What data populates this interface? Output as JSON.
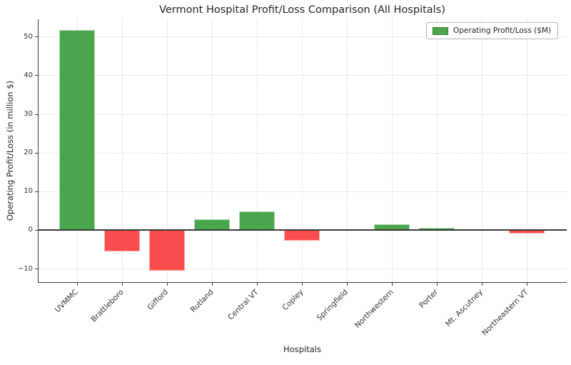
{
  "title": "Vermont Hospital Profit/Loss Comparison (All Hospitals)",
  "axes": {
    "xlabel": "Hospitals",
    "ylabel": "Operating Profit/Loss (in million $)"
  },
  "legend": {
    "label": "Operating Profit/Loss ($M)"
  },
  "colors": {
    "positive_bar": "#4aa54d",
    "negative_bar": "#fa4d4d",
    "legend_swatch": "#4aa54d",
    "zero_line": "#3a3a3a",
    "spine": "#3a3a3a",
    "grid": "#d6d6d6",
    "text": "#262626"
  },
  "chart_data": {
    "type": "bar",
    "title": "Vermont Hospital Profit/Loss Comparison (All Hospitals)",
    "xlabel": "Hospitals",
    "ylabel": "Operating Profit/Loss (in million $)",
    "categories": [
      "UVMMC",
      "Brattleboro",
      "Gifford",
      "Rutland",
      "Central VT",
      "Copley",
      "Springfield",
      "Northwestern",
      "Porter",
      "Mt. Ascutney",
      "Northeastern VT"
    ],
    "values": [
      51.7,
      -5.5,
      -10.5,
      2.7,
      4.8,
      -2.7,
      0.0,
      1.4,
      0.6,
      0.2,
      -1.0
    ],
    "ylim": [
      -13.5,
      54.5
    ],
    "yticks": [
      -10,
      0,
      10,
      20,
      30,
      40,
      50
    ],
    "grid": true,
    "grid_style": "dotted",
    "zero_line": true,
    "legend_position": "upper right",
    "legend_entries": [
      "Operating Profit/Loss ($M)"
    ],
    "color_rule": "green for profit, red for loss",
    "x_tick_rotation": 45
  }
}
